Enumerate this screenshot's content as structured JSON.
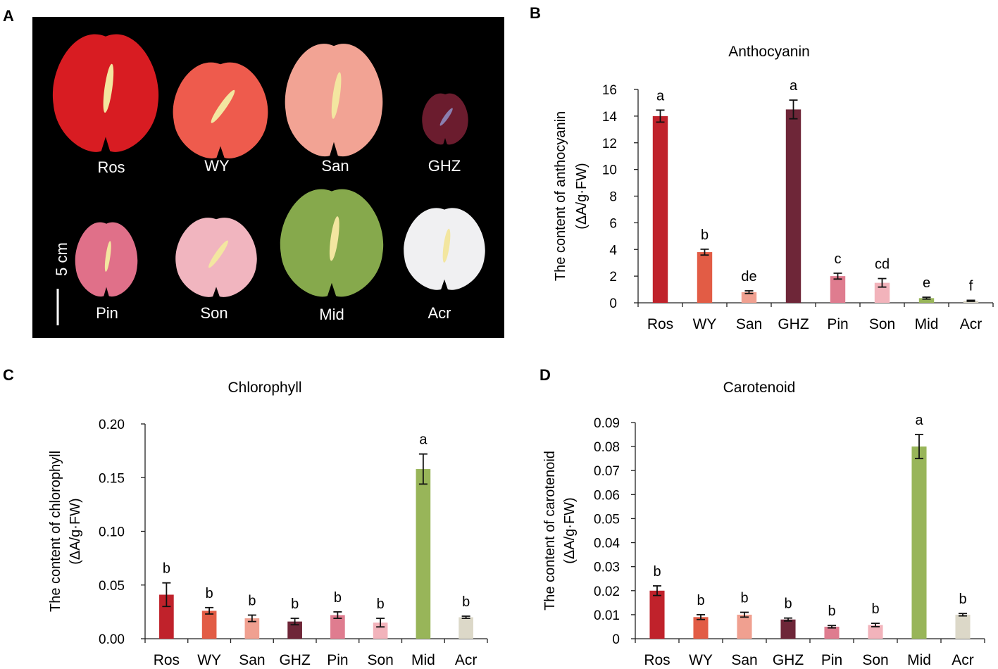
{
  "panel_letters": {
    "a": "A",
    "b": "B",
    "c": "C",
    "d": "D"
  },
  "photo_panel": {
    "labels": [
      "Ros",
      "WY",
      "San",
      "GHZ",
      "Pin",
      "Son",
      "Mid",
      "Acr"
    ],
    "spathe_colors": [
      "#d81c22",
      "#ee5b4d",
      "#f2a394",
      "#6b1c2e",
      "#e07089",
      "#f1b5bf",
      "#86a94c",
      "#f0f0f2"
    ],
    "scale_bar": "5 cm"
  },
  "chart_data": [
    {
      "panel": "B",
      "type": "bar",
      "title": "Anthocyanin",
      "ylabel": "The content of anthocyanin",
      "ylabel_unit": "(ΔA/g·FW)",
      "categories": [
        "Ros",
        "WY",
        "San",
        "GHZ",
        "Pin",
        "Son",
        "Mid",
        "Acr"
      ],
      "values": [
        14.0,
        3.8,
        0.8,
        14.5,
        2.0,
        1.5,
        0.35,
        0.15
      ],
      "errors": [
        0.45,
        0.22,
        0.1,
        0.7,
        0.22,
        0.32,
        0.07,
        0.04
      ],
      "significance": [
        "a",
        "b",
        "de",
        "a",
        "c",
        "cd",
        "e",
        "f"
      ],
      "colors": [
        "#c0222b",
        "#e25c45",
        "#f0a090",
        "#6e2638",
        "#df7c8f",
        "#f2b3bb",
        "#98b559",
        "#dcd8c8"
      ],
      "ylim": [
        0,
        16
      ],
      "yticks": [
        "0",
        "2",
        "4",
        "6",
        "8",
        "10",
        "12",
        "14",
        "16"
      ],
      "ytick_values": [
        0,
        2,
        4,
        6,
        8,
        10,
        12,
        14,
        16
      ]
    },
    {
      "panel": "C",
      "type": "bar",
      "title": "Chlorophyll",
      "ylabel": "The content of chlorophyll",
      "ylabel_unit": "(ΔA/g·FW)",
      "categories": [
        "Ros",
        "WY",
        "San",
        "GHZ",
        "Pin",
        "Son",
        "Mid",
        "Acr"
      ],
      "values": [
        0.041,
        0.026,
        0.019,
        0.016,
        0.022,
        0.015,
        0.158,
        0.02
      ],
      "errors": [
        0.011,
        0.003,
        0.003,
        0.003,
        0.003,
        0.004,
        0.014,
        0.001
      ],
      "significance": [
        "b",
        "b",
        "b",
        "b",
        "b",
        "b",
        "a",
        "b"
      ],
      "colors": [
        "#c0222b",
        "#e25c45",
        "#f0a090",
        "#6e2638",
        "#df7c8f",
        "#f2b3bb",
        "#98b559",
        "#dcd8c8"
      ],
      "ylim": [
        0,
        0.2
      ],
      "yticks": [
        "0.00",
        "0.05",
        "0.10",
        "0.15",
        "0.20"
      ],
      "ytick_values": [
        0,
        0.05,
        0.1,
        0.15,
        0.2
      ]
    },
    {
      "panel": "D",
      "type": "bar",
      "title": "Carotenoid",
      "ylabel": "The content of carotenoid",
      "ylabel_unit": "(ΔA/g·FW)",
      "categories": [
        "Ros",
        "WY",
        "San",
        "GHZ",
        "Pin",
        "Son",
        "Mid",
        "Acr"
      ],
      "values": [
        0.02,
        0.009,
        0.01,
        0.008,
        0.005,
        0.0057,
        0.08,
        0.01
      ],
      "errors": [
        0.002,
        0.001,
        0.001,
        0.0006,
        0.0005,
        0.0007,
        0.005,
        0.0005
      ],
      "significance": [
        "b",
        "b",
        "b",
        "b",
        "b",
        "b",
        "a",
        "b"
      ],
      "colors": [
        "#c0222b",
        "#e25c45",
        "#f0a090",
        "#6e2638",
        "#df7c8f",
        "#f2b3bb",
        "#98b559",
        "#dcd8c8"
      ],
      "ylim": [
        0,
        0.09
      ],
      "yticks": [
        "0",
        "0.01",
        "0.02",
        "0.03",
        "0.04",
        "0.05",
        "0.06",
        "0.07",
        "0.08",
        "0.09"
      ],
      "ytick_values": [
        0,
        0.01,
        0.02,
        0.03,
        0.04,
        0.05,
        0.06,
        0.07,
        0.08,
        0.09
      ]
    }
  ]
}
